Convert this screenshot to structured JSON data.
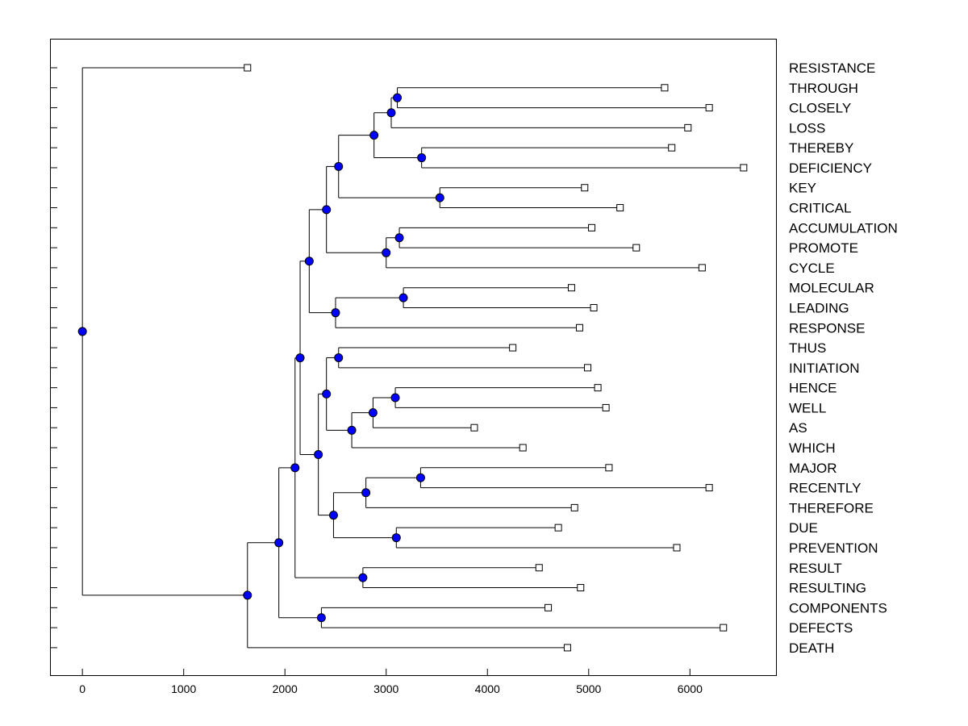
{
  "chart_data": {
    "type": "dendrogram",
    "orientation": "horizontal",
    "title": "",
    "xlabel": "",
    "ylabel": "",
    "xlim": [
      -320,
      6850
    ],
    "x_ticks": [
      0,
      1000,
      2000,
      3000,
      4000,
      5000,
      6000
    ],
    "x_tick_labels": [
      "0",
      "1000",
      "2000",
      "3000",
      "4000",
      "5000",
      "6000"
    ],
    "leaf_box_color": "#ffffff",
    "node_color": "#0000ff",
    "leaves": [
      {
        "label": "RESISTANCE",
        "value": 1630
      },
      {
        "label": "THROUGH",
        "value": 5750
      },
      {
        "label": "CLOSELY",
        "value": 6190
      },
      {
        "label": "LOSS",
        "value": 5980
      },
      {
        "label": "THEREBY",
        "value": 5820
      },
      {
        "label": "DEFICIENCY",
        "value": 6530
      },
      {
        "label": "KEY",
        "value": 4960
      },
      {
        "label": "CRITICAL",
        "value": 5310
      },
      {
        "label": "ACCUMULATION",
        "value": 5030
      },
      {
        "label": "PROMOTE",
        "value": 5470
      },
      {
        "label": "CYCLE",
        "value": 6120
      },
      {
        "label": "MOLECULAR",
        "value": 4830
      },
      {
        "label": "LEADING",
        "value": 5050
      },
      {
        "label": "RESPONSE",
        "value": 4910
      },
      {
        "label": "THUS",
        "value": 4250
      },
      {
        "label": "INITIATION",
        "value": 4990
      },
      {
        "label": "HENCE",
        "value": 5090
      },
      {
        "label": "WELL",
        "value": 5170
      },
      {
        "label": "AS",
        "value": 3870
      },
      {
        "label": "WHICH",
        "value": 4350
      },
      {
        "label": "MAJOR",
        "value": 5200
      },
      {
        "label": "RECENTLY",
        "value": 6190
      },
      {
        "label": "THEREFORE",
        "value": 4860
      },
      {
        "label": "DUE",
        "value": 4700
      },
      {
        "label": "PREVENTION",
        "value": 5870
      },
      {
        "label": "RESULT",
        "value": 4510
      },
      {
        "label": "RESULTING",
        "value": 4920
      },
      {
        "label": "COMPONENTS",
        "value": 4600
      },
      {
        "label": "DEFECTS",
        "value": 6330
      },
      {
        "label": "DEATH",
        "value": 4790
      }
    ],
    "merges": [
      {
        "id": "m1",
        "value": 3110,
        "children": [
          1,
          2
        ]
      },
      {
        "id": "m2",
        "value": 3050,
        "children": [
          "m1",
          3
        ]
      },
      {
        "id": "m3",
        "value": 3350,
        "children": [
          4,
          5
        ]
      },
      {
        "id": "m4",
        "value": 2880,
        "children": [
          "m2",
          "m3"
        ]
      },
      {
        "id": "m5",
        "value": 3530,
        "children": [
          6,
          7
        ]
      },
      {
        "id": "m6",
        "value": 2530,
        "children": [
          "m4",
          "m5"
        ]
      },
      {
        "id": "m7",
        "value": 3130,
        "children": [
          8,
          9
        ]
      },
      {
        "id": "m8",
        "value": 3000,
        "children": [
          "m7",
          10
        ]
      },
      {
        "id": "m9",
        "value": 2410,
        "children": [
          "m6",
          "m8"
        ]
      },
      {
        "id": "m10",
        "value": 3170,
        "children": [
          11,
          12
        ]
      },
      {
        "id": "m11",
        "value": 2500,
        "children": [
          "m10",
          13
        ]
      },
      {
        "id": "m12",
        "value": 2240,
        "children": [
          "m9",
          "m11"
        ]
      },
      {
        "id": "m13",
        "value": 2530,
        "children": [
          14,
          15
        ]
      },
      {
        "id": "m14",
        "value": 3090,
        "children": [
          16,
          17
        ]
      },
      {
        "id": "m15",
        "value": 2870,
        "children": [
          "m14",
          18
        ]
      },
      {
        "id": "m16",
        "value": 2660,
        "children": [
          "m15",
          19
        ]
      },
      {
        "id": "m17",
        "value": 2410,
        "children": [
          "m13",
          "m16"
        ]
      },
      {
        "id": "m18",
        "value": 3340,
        "children": [
          20,
          21
        ]
      },
      {
        "id": "m19",
        "value": 2800,
        "children": [
          "m18",
          22
        ]
      },
      {
        "id": "m20",
        "value": 3100,
        "children": [
          23,
          24
        ]
      },
      {
        "id": "m21",
        "value": 2480,
        "children": [
          "m19",
          "m20"
        ]
      },
      {
        "id": "m22",
        "value": 2330,
        "children": [
          "m17",
          "m21"
        ]
      },
      {
        "id": "m23",
        "value": 2150,
        "children": [
          "m12",
          "m22"
        ]
      },
      {
        "id": "m24",
        "value": 2770,
        "children": [
          25,
          26
        ]
      },
      {
        "id": "m25",
        "value": 2100,
        "children": [
          "m23",
          "m24"
        ]
      },
      {
        "id": "m26",
        "value": 2360,
        "children": [
          27,
          28
        ]
      },
      {
        "id": "m27",
        "value": 1940,
        "children": [
          "m25",
          "m26"
        ]
      },
      {
        "id": "m28",
        "value": 1630,
        "children": [
          "m27",
          29
        ]
      },
      {
        "id": "m29",
        "value": 0,
        "children": [
          0,
          "m28"
        ]
      }
    ]
  }
}
